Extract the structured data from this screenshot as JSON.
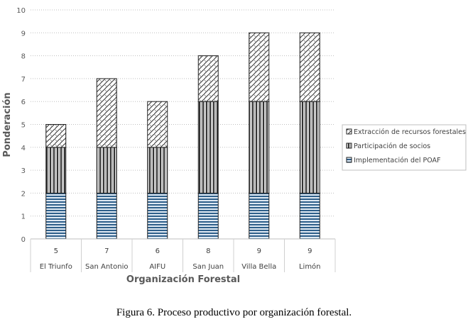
{
  "chart_data": {
    "type": "bar",
    "stacked": true,
    "title": "",
    "xlabel": "Organización Forestal",
    "ylabel": "Ponderación",
    "ylim": [
      0,
      10
    ],
    "yticks": [
      "0",
      "1",
      "2",
      "3",
      "4",
      "5",
      "6",
      "7",
      "8",
      "9",
      "10"
    ],
    "categories": [
      "El Triunfo",
      "San Antonio",
      "AIFU",
      "San Juan",
      "Villa Bella",
      "Limón"
    ],
    "totals": [
      "5",
      "7",
      "6",
      "8",
      "9",
      "9"
    ],
    "series": [
      {
        "name": "Implementación del POAF",
        "values": [
          2,
          2,
          2,
          2,
          2,
          2
        ],
        "color": "#2e5f8a"
      },
      {
        "name": "Participación de socios",
        "values": [
          2,
          2,
          2,
          4,
          4,
          4
        ],
        "color": "#555555"
      },
      {
        "name": "Extracción de recursos forestales",
        "values": [
          1,
          3,
          2,
          2,
          3,
          3
        ],
        "color": "#444444"
      }
    ],
    "grid": true,
    "legend_position": "right"
  },
  "caption": "Figura 6. Proceso productivo por organización forestal."
}
